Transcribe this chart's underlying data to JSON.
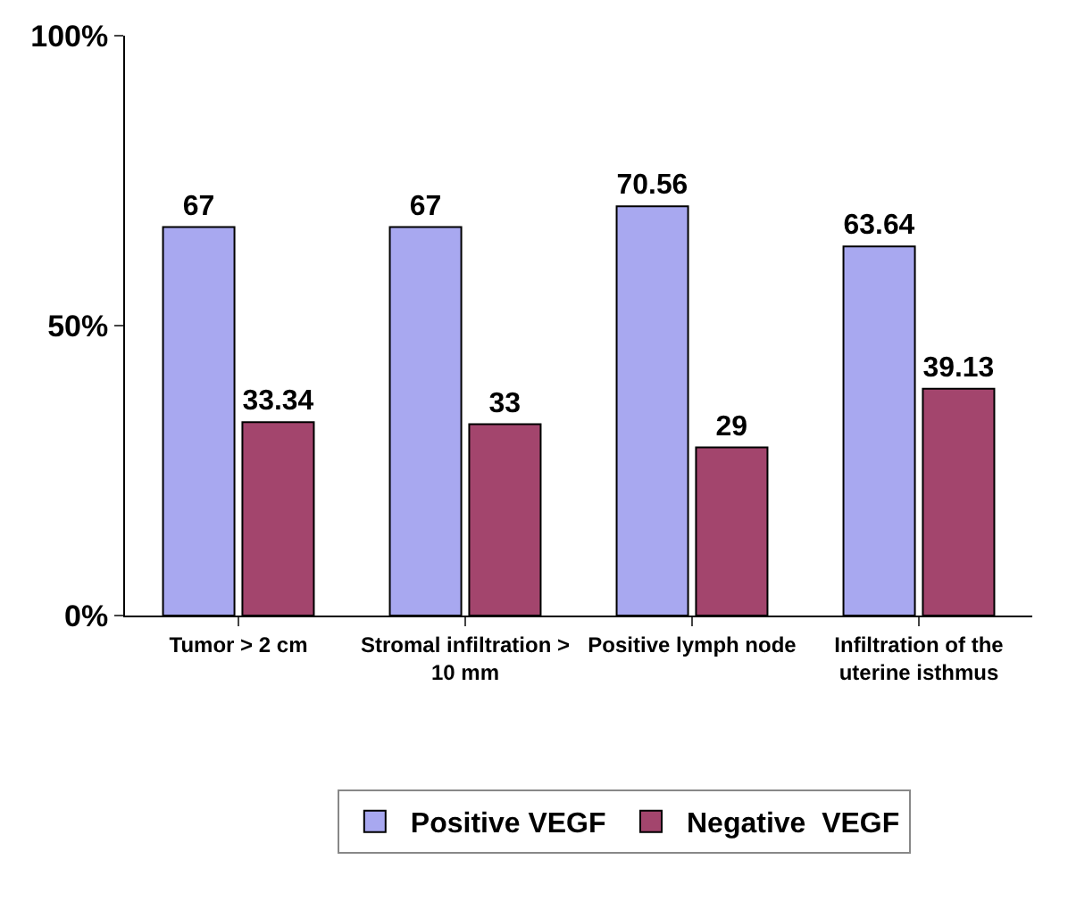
{
  "chart_data": {
    "type": "bar",
    "categories": [
      "Tumor > 2 cm",
      "Stromal infiltration > 10 mm",
      "Positive lymph node",
      "Infiltration of the uterine isthmus"
    ],
    "series": [
      {
        "name": "Positive VEGF",
        "color": "#a8a8f0",
        "values": [
          67,
          67,
          70.56,
          63.64
        ]
      },
      {
        "name": "Negative  VEGF",
        "color": "#a3456d",
        "values": [
          33.34,
          33,
          29,
          39.13
        ]
      }
    ],
    "ylim": [
      0,
      100
    ],
    "yticks": [
      {
        "value": 0,
        "label": "0%"
      },
      {
        "value": 50,
        "label": "50%"
      },
      {
        "value": 100,
        "label": "100%"
      }
    ],
    "grid": false,
    "legend": "bottom",
    "data_labels": true
  }
}
